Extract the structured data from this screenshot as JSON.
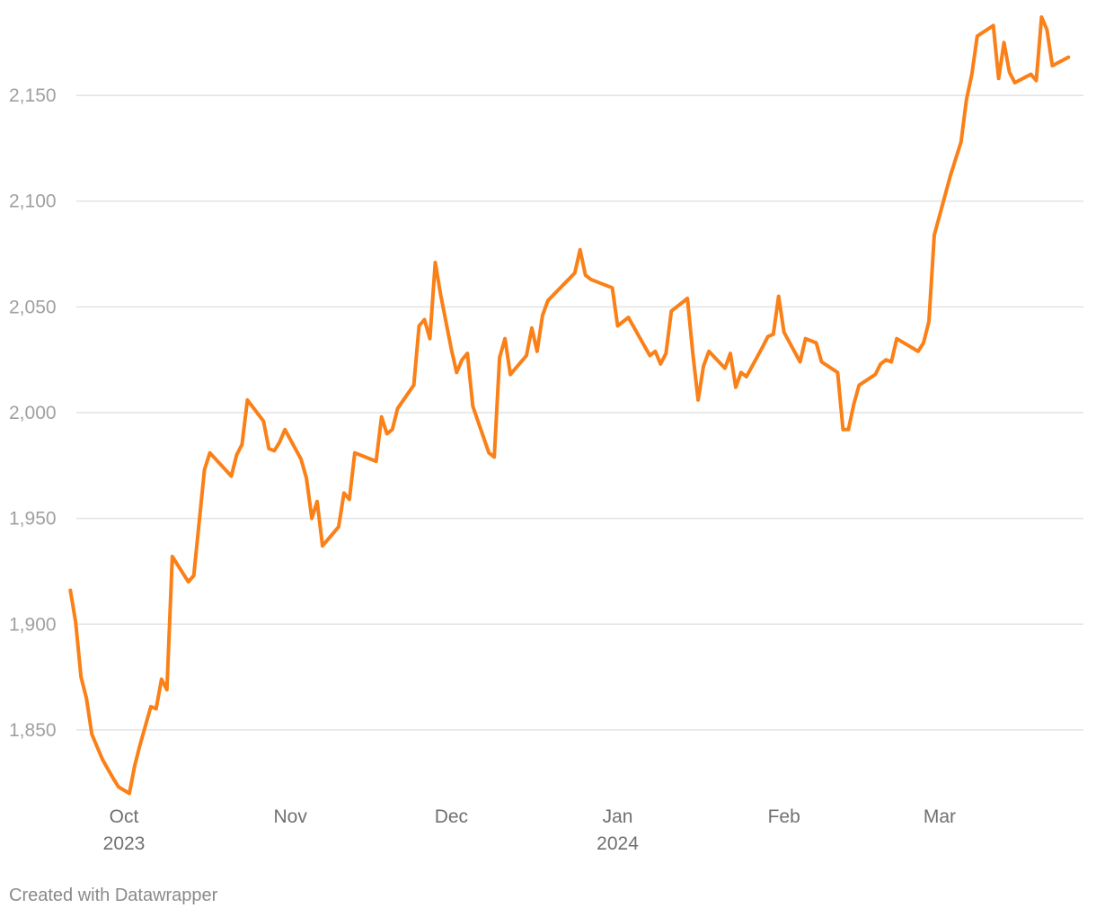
{
  "chart_data": {
    "type": "line",
    "title": "",
    "xlabel": "",
    "ylabel": "",
    "ylim": [
      1810,
      2190
    ],
    "grid": "horizontal",
    "y_ticks": [
      1850,
      1900,
      1950,
      2000,
      2050,
      2100,
      2150
    ],
    "y_tick_labels": [
      "1,850",
      "1,900",
      "1,950",
      "2,000",
      "2,050",
      "2,100",
      "2,150"
    ],
    "x_ticks": [
      {
        "date": "2023-10-01",
        "label": "Oct",
        "sublabel": "2023"
      },
      {
        "date": "2023-11-01",
        "label": "Nov",
        "sublabel": ""
      },
      {
        "date": "2023-12-01",
        "label": "Dec",
        "sublabel": ""
      },
      {
        "date": "2024-01-01",
        "label": "Jan",
        "sublabel": "2024"
      },
      {
        "date": "2024-02-01",
        "label": "Feb",
        "sublabel": ""
      },
      {
        "date": "2024-03-01",
        "label": "Mar",
        "sublabel": ""
      }
    ],
    "series": [
      {
        "color": "#fa8017",
        "points": [
          [
            "2023-09-21",
            1916
          ],
          [
            "2023-09-22",
            1901
          ],
          [
            "2023-09-23",
            1875
          ],
          [
            "2023-09-24",
            1865
          ],
          [
            "2023-09-25",
            1848
          ],
          [
            "2023-09-27",
            1836
          ],
          [
            "2023-09-29",
            1827
          ],
          [
            "2023-09-30",
            1823
          ],
          [
            "2023-10-02",
            1820
          ],
          [
            "2023-10-03",
            1833
          ],
          [
            "2023-10-04",
            1843
          ],
          [
            "2023-10-06",
            1861
          ],
          [
            "2023-10-07",
            1860
          ],
          [
            "2023-10-08",
            1874
          ],
          [
            "2023-10-09",
            1869
          ],
          [
            "2023-10-10",
            1932
          ],
          [
            "2023-10-13",
            1920
          ],
          [
            "2023-10-14",
            1923
          ],
          [
            "2023-10-16",
            1973
          ],
          [
            "2023-10-17",
            1981
          ],
          [
            "2023-10-21",
            1970
          ],
          [
            "2023-10-22",
            1980
          ],
          [
            "2023-10-23",
            1985
          ],
          [
            "2023-10-24",
            2006
          ],
          [
            "2023-10-27",
            1996
          ],
          [
            "2023-10-28",
            1983
          ],
          [
            "2023-10-29",
            1982
          ],
          [
            "2023-10-30",
            1986
          ],
          [
            "2023-10-31",
            1992
          ],
          [
            "2023-11-03",
            1978
          ],
          [
            "2023-11-04",
            1969
          ],
          [
            "2023-11-05",
            1950
          ],
          [
            "2023-11-06",
            1958
          ],
          [
            "2023-11-07",
            1937
          ],
          [
            "2023-11-10",
            1946
          ],
          [
            "2023-11-11",
            1962
          ],
          [
            "2023-11-12",
            1959
          ],
          [
            "2023-11-13",
            1981
          ],
          [
            "2023-11-17",
            1977
          ],
          [
            "2023-11-18",
            1998
          ],
          [
            "2023-11-19",
            1990
          ],
          [
            "2023-11-20",
            1992
          ],
          [
            "2023-11-21",
            2002
          ],
          [
            "2023-11-24",
            2013
          ],
          [
            "2023-11-25",
            2041
          ],
          [
            "2023-11-26",
            2044
          ],
          [
            "2023-11-27",
            2035
          ],
          [
            "2023-11-28",
            2071
          ],
          [
            "2023-11-29",
            2056
          ],
          [
            "2023-12-01",
            2030
          ],
          [
            "2023-12-02",
            2019
          ],
          [
            "2023-12-03",
            2025
          ],
          [
            "2023-12-04",
            2028
          ],
          [
            "2023-12-05",
            2003
          ],
          [
            "2023-12-08",
            1981
          ],
          [
            "2023-12-09",
            1979
          ],
          [
            "2023-12-10",
            2026
          ],
          [
            "2023-12-11",
            2035
          ],
          [
            "2023-12-12",
            2018
          ],
          [
            "2023-12-15",
            2027
          ],
          [
            "2023-12-16",
            2040
          ],
          [
            "2023-12-17",
            2029
          ],
          [
            "2023-12-18",
            2046
          ],
          [
            "2023-12-19",
            2053
          ],
          [
            "2023-12-24",
            2066
          ],
          [
            "2023-12-25",
            2077
          ],
          [
            "2023-12-26",
            2065
          ],
          [
            "2023-12-27",
            2063
          ],
          [
            "2023-12-31",
            2059
          ],
          [
            "2024-01-01",
            2041
          ],
          [
            "2024-01-03",
            2045
          ],
          [
            "2024-01-05",
            2036
          ],
          [
            "2024-01-07",
            2027
          ],
          [
            "2024-01-08",
            2029
          ],
          [
            "2024-01-09",
            2023
          ],
          [
            "2024-01-10",
            2028
          ],
          [
            "2024-01-11",
            2048
          ],
          [
            "2024-01-14",
            2054
          ],
          [
            "2024-01-15",
            2028
          ],
          [
            "2024-01-16",
            2006
          ],
          [
            "2024-01-17",
            2022
          ],
          [
            "2024-01-18",
            2029
          ],
          [
            "2024-01-21",
            2021
          ],
          [
            "2024-01-22",
            2028
          ],
          [
            "2024-01-23",
            2012
          ],
          [
            "2024-01-24",
            2019
          ],
          [
            "2024-01-25",
            2017
          ],
          [
            "2024-01-28",
            2031
          ],
          [
            "2024-01-29",
            2036
          ],
          [
            "2024-01-30",
            2037
          ],
          [
            "2024-01-31",
            2055
          ],
          [
            "2024-02-01",
            2038
          ],
          [
            "2024-02-04",
            2024
          ],
          [
            "2024-02-05",
            2035
          ],
          [
            "2024-02-07",
            2033
          ],
          [
            "2024-02-08",
            2024
          ],
          [
            "2024-02-11",
            2019
          ],
          [
            "2024-02-12",
            1992
          ],
          [
            "2024-02-13",
            1992
          ],
          [
            "2024-02-14",
            2004
          ],
          [
            "2024-02-15",
            2013
          ],
          [
            "2024-02-18",
            2018
          ],
          [
            "2024-02-19",
            2023
          ],
          [
            "2024-02-20",
            2025
          ],
          [
            "2024-02-21",
            2024
          ],
          [
            "2024-02-22",
            2035
          ],
          [
            "2024-02-26",
            2029
          ],
          [
            "2024-02-27",
            2033
          ],
          [
            "2024-02-28",
            2043
          ],
          [
            "2024-02-29",
            2084
          ],
          [
            "2024-03-03",
            2112
          ],
          [
            "2024-03-05",
            2128
          ],
          [
            "2024-03-06",
            2148
          ],
          [
            "2024-03-07",
            2160
          ],
          [
            "2024-03-08",
            2178
          ],
          [
            "2024-03-11",
            2183
          ],
          [
            "2024-03-12",
            2158
          ],
          [
            "2024-03-13",
            2175
          ],
          [
            "2024-03-14",
            2161
          ],
          [
            "2024-03-15",
            2156
          ],
          [
            "2024-03-18",
            2160
          ],
          [
            "2024-03-19",
            2157
          ],
          [
            "2024-03-20",
            2187
          ],
          [
            "2024-03-21",
            2181
          ],
          [
            "2024-03-22",
            2164
          ],
          [
            "2024-03-25",
            2168
          ]
        ]
      }
    ]
  },
  "footer": {
    "credit": "Created with Datawrapper"
  }
}
